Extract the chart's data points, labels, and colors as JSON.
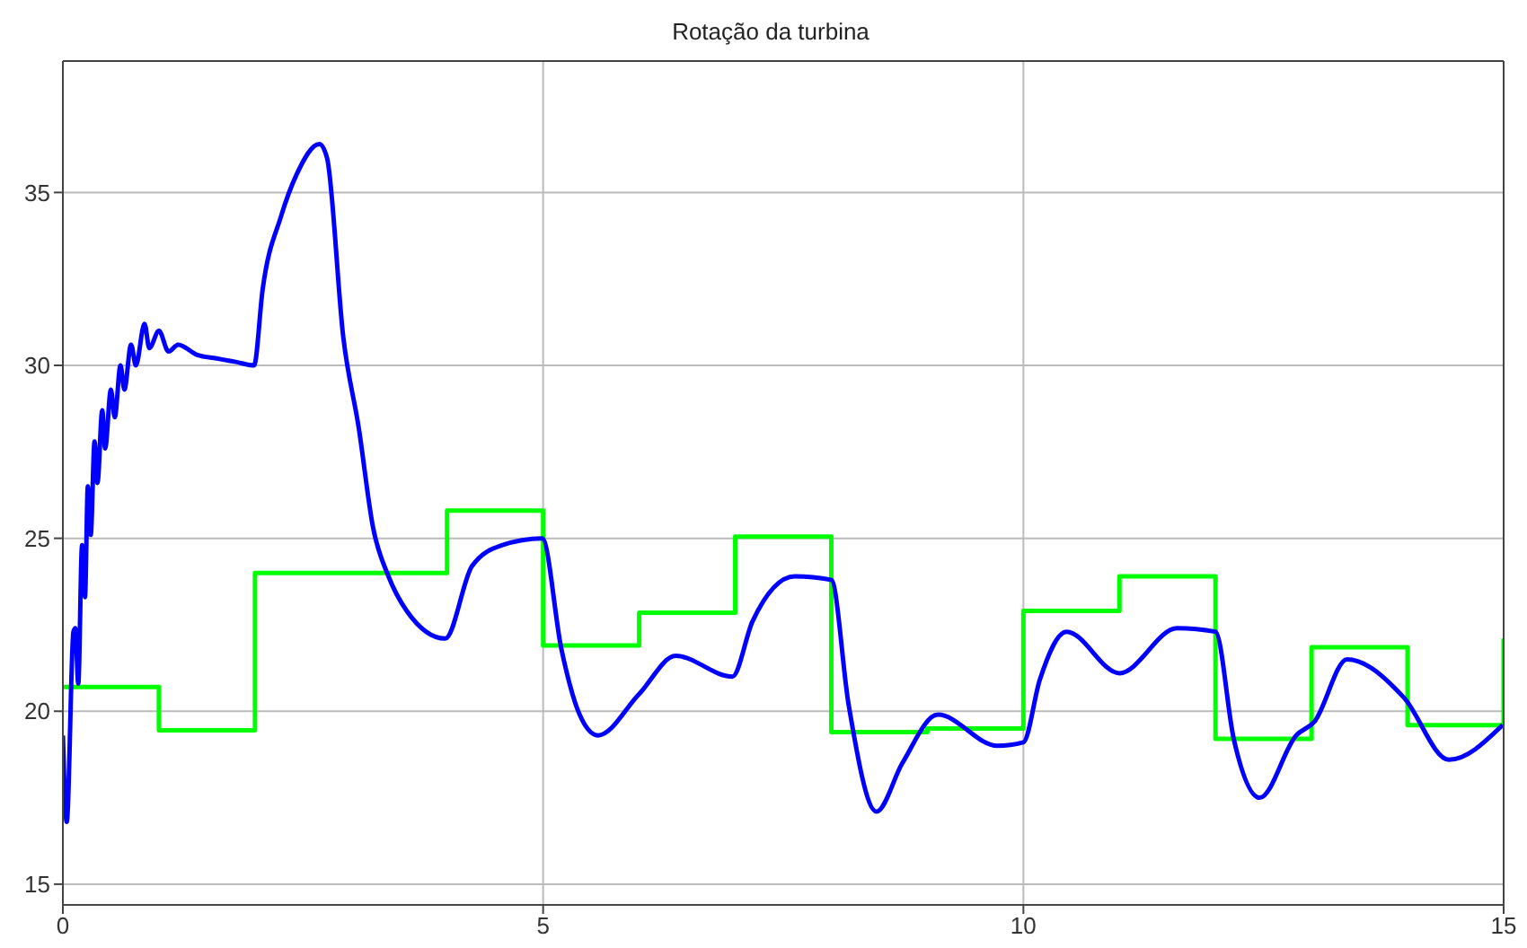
{
  "chart_data": {
    "type": "line",
    "title": "Rotação da turbina",
    "xlim": [
      0,
      15
    ],
    "xticks": [
      0,
      5,
      10,
      15
    ],
    "ylim": [
      14.4,
      38.8
    ],
    "yticks": [
      15,
      20,
      25,
      30,
      35
    ],
    "grid": true,
    "legend": false,
    "marker": "none",
    "line_style": "solid",
    "series": [
      {
        "type": "step",
        "color": "#00ff00",
        "x": [
          0,
          1,
          2,
          4,
          5,
          6,
          7,
          8,
          9,
          10,
          11,
          12,
          13,
          14,
          15
        ],
        "values": [
          20.7,
          19.45,
          24.0,
          25.8,
          21.9,
          22.85,
          25.05,
          19.4,
          19.5,
          22.9,
          23.9,
          19.2,
          21.85,
          19.6,
          22.1
        ]
      },
      {
        "color": "#0000ff",
        "x": [
          0,
          0.04,
          0.11,
          0.13,
          0.16,
          0.2,
          0.23,
          0.26,
          0.29,
          0.33,
          0.36,
          0.41,
          0.44,
          0.5,
          0.54,
          0.6,
          0.64,
          0.71,
          0.76,
          0.85,
          0.9,
          1.0,
          1.1,
          1.2,
          1.4,
          1.6,
          1.8,
          1.99,
          2.08,
          2.27,
          2.43,
          2.67,
          2.75,
          2.92,
          3.08,
          3.23,
          3.39,
          3.58,
          3.98,
          4.26,
          4.57,
          4.99,
          5.19,
          5.38,
          5.57,
          6.0,
          6.38,
          6.97,
          7.18,
          7.62,
          8.0,
          8.18,
          8.47,
          8.74,
          9.11,
          9.73,
          10.0,
          10.17,
          10.45,
          11.0,
          11.6,
          12.0,
          12.19,
          12.46,
          12.84,
          13.03,
          13.37,
          13.96,
          14.43,
          14.99
        ],
        "values": [
          19.3,
          16.8,
          22.3,
          22.4,
          20.8,
          24.8,
          23.3,
          26.5,
          25.1,
          27.8,
          26.6,
          28.7,
          27.6,
          29.3,
          28.5,
          30.0,
          29.3,
          30.6,
          30.0,
          31.2,
          30.5,
          31.0,
          30.4,
          30.6,
          30.3,
          30.2,
          30.1,
          30.0,
          32.2,
          34.3,
          35.5,
          36.4,
          36.0,
          30.8,
          28.2,
          25.3,
          23.9,
          22.9,
          22.1,
          24.2,
          24.8,
          25.0,
          21.8,
          19.9,
          19.3,
          20.5,
          21.6,
          21.0,
          22.6,
          23.9,
          23.8,
          20.2,
          17.1,
          18.5,
          19.9,
          19.0,
          19.1,
          20.9,
          22.3,
          21.1,
          22.4,
          22.3,
          19.2,
          17.5,
          19.3,
          19.7,
          21.5,
          20.4,
          18.6,
          19.6
        ]
      }
    ]
  }
}
